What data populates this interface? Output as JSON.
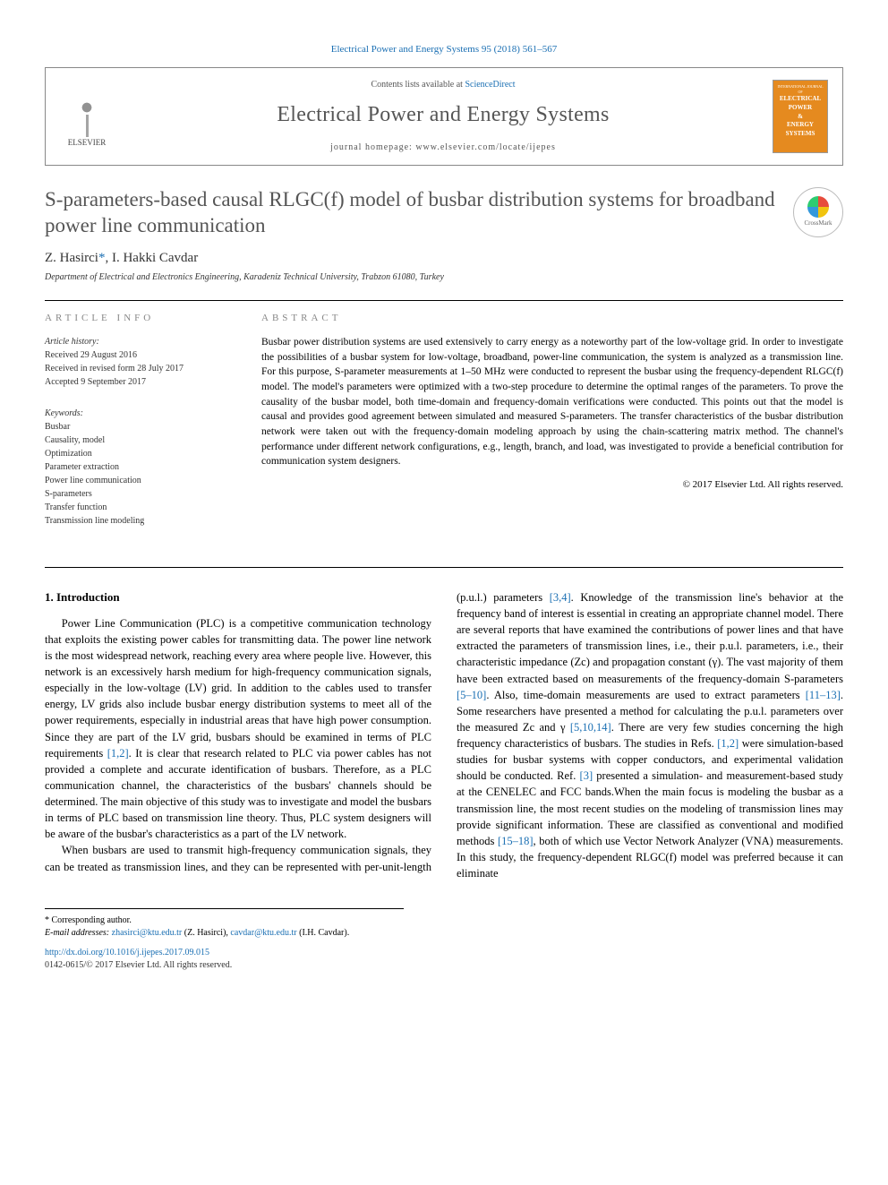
{
  "header": {
    "citation": "Electrical Power and Energy Systems 95 (2018) 561–567",
    "contents_prefix": "Contents lists available at ",
    "contents_link": "ScienceDirect",
    "journal_name": "Electrical Power and Energy Systems",
    "homepage_prefix": "journal homepage: ",
    "homepage_url": "www.elsevier.com/locate/ijepes",
    "publisher_logo": "ELSEVIER",
    "cover": {
      "top": "INTERNATIONAL JOURNAL OF",
      "l1": "ELECTRICAL",
      "l2": "POWER",
      "amp": "&",
      "l3": "ENERGY",
      "l4": "SYSTEMS"
    }
  },
  "title": "S-parameters-based causal RLGC(f) model of busbar distribution systems for broadband power line communication",
  "crossmark": "CrossMark",
  "authors": {
    "a1": "Z. Hasirci",
    "a1_mark": "*",
    "sep": ", ",
    "a2": "I. Hakki Cavdar"
  },
  "affiliation": "Department of Electrical and Electronics Engineering, Karadeniz Technical University, Trabzon 61080, Turkey",
  "article_info": {
    "heading": "ARTICLE INFO",
    "history_label": "Article history:",
    "received": "Received 29 August 2016",
    "revised": "Received in revised form 28 July 2017",
    "accepted": "Accepted 9 September 2017",
    "keywords_label": "Keywords:",
    "keywords": [
      "Busbar",
      "Causality, model",
      "Optimization",
      "Parameter extraction",
      "Power line communication",
      "S-parameters",
      "Transfer function",
      "Transmission line modeling"
    ]
  },
  "abstract": {
    "heading": "ABSTRACT",
    "text": "Busbar power distribution systems are used extensively to carry energy as a noteworthy part of the low-voltage grid. In order to investigate the possibilities of a busbar system for low-voltage, broadband, power-line communication, the system is analyzed as a transmission line. For this purpose, S-parameter measurements at 1–50 MHz were conducted to represent the busbar using the frequency-dependent RLGC(f) model. The model's parameters were optimized with a two-step procedure to determine the optimal ranges of the parameters. To prove the causality of the busbar model, both time-domain and frequency-domain verifications were conducted. This points out that the model is causal and provides good agreement between simulated and measured S-parameters. The transfer characteristics of the busbar distribution network were taken out with the frequency-domain modeling approach by using the chain-scattering matrix method. The channel's performance under different network configurations, e.g., length, branch, and load, was investigated to provide a beneficial contribution for communication system designers.",
    "copyright": "© 2017 Elsevier Ltd. All rights reserved."
  },
  "body": {
    "section1_head": "1. Introduction",
    "p1": "Power Line Communication (PLC) is a competitive communication technology that exploits the existing power cables for transmitting data. The power line network is the most widespread network, reaching every area where people live. However, this network is an excessively harsh medium for high-frequency communication signals, especially in the low-voltage (LV) grid. In addition to the cables used to transfer energy, LV grids also include busbar energy distribution systems to meet all of the power requirements, especially in industrial areas that have high power consumption. Since they are part of the LV grid, busbars should be examined in terms of PLC requirements ",
    "p1_cite1": "[1,2]",
    "p1b": ". It is clear that research related to PLC via power cables has not provided a complete and accurate identification of busbars. Therefore, as a PLC communication channel, the characteristics of the busbars' channels should be determined. The main objective of this study was to investigate and model the busbars in terms of PLC based on transmission line theory. Thus, PLC system designers will be aware of the busbar's characteristics as a part of the LV network.",
    "p2": "When busbars are used to transmit high-frequency communication signals, they can be treated as transmission lines, and they can be represented with per-unit-length (p.u.l.) parameters ",
    "p2_cite1": "[3,4]",
    "p2b": ". Knowledge of the transmission line's behavior at the frequency band of interest is essential in creating an appropriate channel model. There are several reports that have examined the contributions of power lines and that have extracted the parameters of transmission lines, i.e., their p.u.l. parameters, i.e., their characteristic impedance (Zc) and propagation constant (γ). The vast majority of them have been extracted based on measurements of the frequency-domain S-parameters ",
    "p2_cite2": "[5–10]",
    "p2c": ". Also, time-domain measurements are used to extract parameters ",
    "p2_cite3": "[11–13]",
    "p2d": ". Some researchers have presented a method for calculating the p.u.l. parameters over the measured Zc and γ ",
    "p2_cite4": "[5,10,14]",
    "p2e": ". There are very few studies concerning the high frequency characteristics of busbars. The studies in Refs. ",
    "p2_cite5": "[1,2]",
    "p2f": " were simulation-based studies for busbar systems with copper conductors, and experimental validation should be conducted. Ref. ",
    "p2_cite6": "[3]",
    "p2g": " presented a simulation- and measurement-based study at the CENELEC and FCC bands.When the main focus is modeling the busbar as a transmission line, the most recent studies on the modeling of transmission lines may provide significant information. These are classified as conventional and modified methods ",
    "p2_cite7": "[15–18]",
    "p2h": ", both of which use Vector Network Analyzer (VNA) measurements. In this study, the frequency-dependent RLGC(f) model was preferred because it can eliminate"
  },
  "footer": {
    "corr": "* Corresponding author.",
    "email_label": "E-mail addresses: ",
    "email1": "zhasirci@ktu.edu.tr",
    "email1_who": " (Z. Hasirci), ",
    "email2": "cavdar@ktu.edu.tr",
    "email2_who": " (I.H. Cavdar).",
    "doi": "http://dx.doi.org/10.1016/j.ijepes.2017.09.015",
    "rights": "0142-0615/© 2017 Elsevier Ltd. All rights reserved."
  },
  "colors": {
    "link": "#1a6fb3",
    "heading_gray": "#888888",
    "text": "#333333",
    "cover_bg": "#e58a1f"
  }
}
